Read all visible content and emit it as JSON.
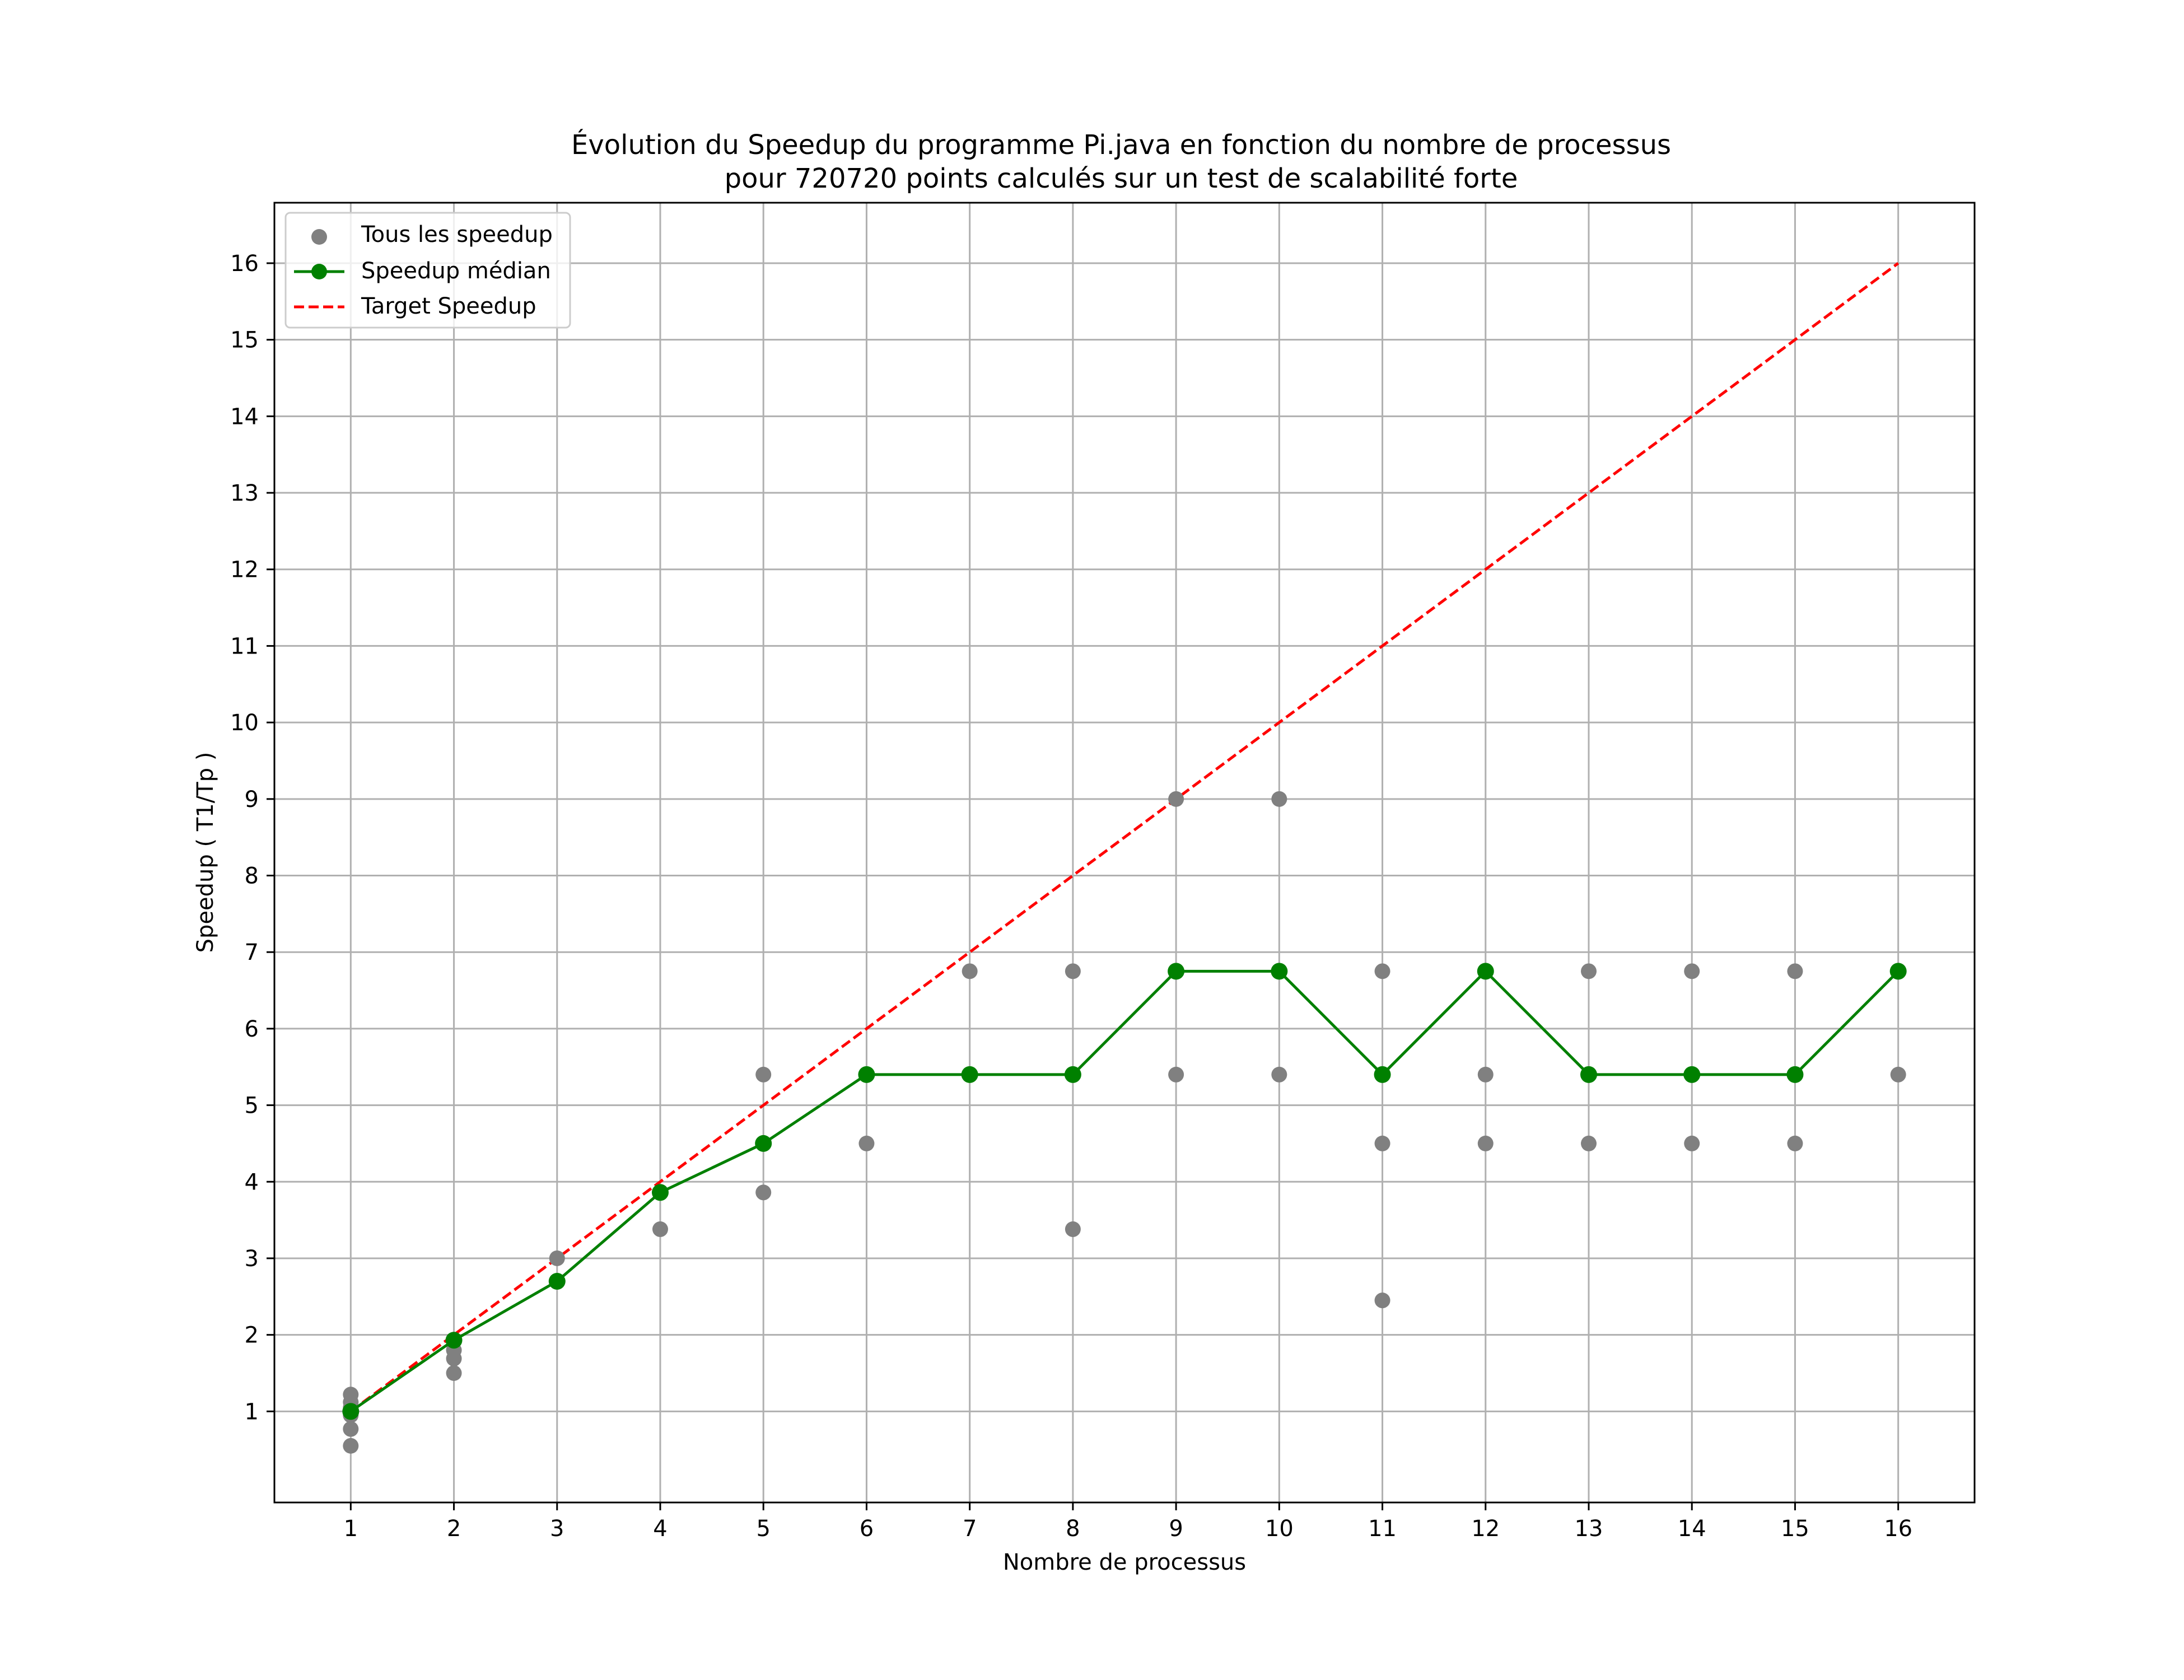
{
  "chart_data": {
    "type": "line",
    "title_line1": "Évolution du Speedup du programme Pi.java en fonction du nombre de processus",
    "title_line2": "pour 720720 points calculés sur un test de scalabilité forte",
    "xlabel": "Nombre de processus",
    "ylabel": "Speedup ( T1/Tp )",
    "x_ticks": [
      1,
      2,
      3,
      4,
      5,
      6,
      7,
      8,
      9,
      10,
      11,
      12,
      13,
      14,
      15,
      16
    ],
    "y_ticks": [
      1,
      2,
      3,
      4,
      5,
      6,
      7,
      8,
      9,
      10,
      11,
      12,
      13,
      14,
      15,
      16
    ],
    "xlim": [
      0.26,
      16.74
    ],
    "ylim": [
      -0.19,
      16.79
    ],
    "grid": true,
    "legend_position": "upper-left",
    "legend": {
      "scatter_label": "Tous les speedup",
      "median_label": "Speedup médian",
      "target_label": "Target Speedup"
    },
    "colors": {
      "scatter": "#808080",
      "median": "#008000",
      "target": "#ff0000",
      "grid": "#b0b0b0"
    },
    "scatter": [
      [
        1,
        0.55
      ],
      [
        1,
        0.77
      ],
      [
        1,
        0.95
      ],
      [
        1,
        1.0
      ],
      [
        1,
        1.05
      ],
      [
        1,
        1.12
      ],
      [
        1,
        1.22
      ],
      [
        2,
        1.5
      ],
      [
        2,
        1.69
      ],
      [
        2,
        1.8
      ],
      [
        2,
        1.93
      ],
      [
        3,
        3.0
      ],
      [
        4,
        3.38
      ],
      [
        4,
        3.86
      ],
      [
        5,
        3.86
      ],
      [
        5,
        4.5
      ],
      [
        5,
        5.4
      ],
      [
        6,
        4.5
      ],
      [
        6,
        5.4
      ],
      [
        7,
        5.4
      ],
      [
        7,
        6.75
      ],
      [
        8,
        3.38
      ],
      [
        8,
        5.4
      ],
      [
        8,
        6.75
      ],
      [
        9,
        5.4
      ],
      [
        9,
        6.75
      ],
      [
        9,
        9.0
      ],
      [
        10,
        5.4
      ],
      [
        10,
        6.75
      ],
      [
        10,
        9.0
      ],
      [
        11,
        2.45
      ],
      [
        11,
        4.5
      ],
      [
        11,
        5.4
      ],
      [
        11,
        6.75
      ],
      [
        12,
        4.5
      ],
      [
        12,
        5.4
      ],
      [
        12,
        6.75
      ],
      [
        13,
        4.5
      ],
      [
        13,
        5.4
      ],
      [
        13,
        6.75
      ],
      [
        14,
        4.5
      ],
      [
        14,
        5.4
      ],
      [
        14,
        6.75
      ],
      [
        15,
        4.5
      ],
      [
        15,
        5.4
      ],
      [
        15,
        6.75
      ],
      [
        16,
        5.4
      ],
      [
        16,
        6.75
      ]
    ],
    "series": [
      {
        "name": "Speedup médian",
        "x": [
          1,
          2,
          3,
          4,
          5,
          6,
          7,
          8,
          9,
          10,
          11,
          12,
          13,
          14,
          15,
          16
        ],
        "values": [
          1.0,
          1.93,
          2.7,
          3.86,
          4.5,
          5.4,
          5.4,
          5.4,
          6.75,
          6.75,
          5.4,
          6.75,
          5.4,
          5.4,
          5.4,
          6.75
        ]
      },
      {
        "name": "Target Speedup",
        "x": [
          1,
          2,
          3,
          4,
          5,
          6,
          7,
          8,
          9,
          10,
          11,
          12,
          13,
          14,
          15,
          16
        ],
        "values": [
          1,
          2,
          3,
          4,
          5,
          6,
          7,
          8,
          9,
          10,
          11,
          12,
          13,
          14,
          15,
          16
        ]
      }
    ]
  }
}
